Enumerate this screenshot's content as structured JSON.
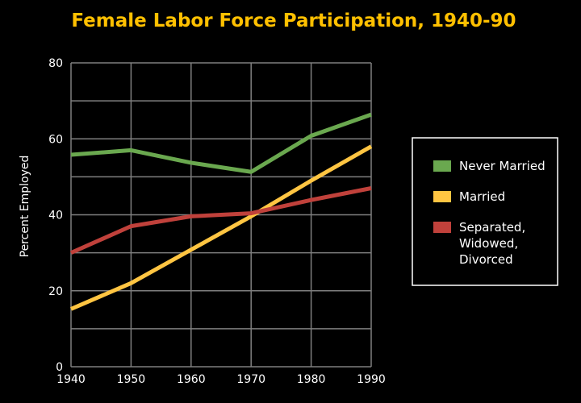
{
  "chart_data": {
    "type": "line",
    "title": "Female Labor Force Participation, 1940-90",
    "xlabel": "",
    "ylabel": "Percent Employed",
    "x": [
      1940,
      1950,
      1960,
      1970,
      1980,
      1990
    ],
    "xlim": [
      1940,
      1990
    ],
    "ylim": [
      0,
      80
    ],
    "x_ticks": [
      "1940",
      "1950",
      "1960",
      "1970",
      "1980",
      "1990"
    ],
    "y_ticks": [
      "0",
      "20",
      "40",
      "60",
      "80"
    ],
    "grid": true,
    "legend_position": "right",
    "series": [
      {
        "name": "Never Married",
        "color": "#6aa84f",
        "values": [
          55.8,
          57.0,
          53.7,
          51.3,
          60.8,
          66.4
        ]
      },
      {
        "name": "Married",
        "color": "#ffc542",
        "values": [
          15.2,
          22.0,
          30.8,
          39.6,
          49.0,
          58.0
        ]
      },
      {
        "name": "Separated, Widowed, Divorced",
        "legend_lines": [
          "Separated,",
          "Widowed,",
          "Divorced"
        ],
        "color": "#c0413b",
        "values": [
          30.0,
          37.0,
          39.6,
          40.4,
          43.9,
          47.0
        ]
      }
    ]
  },
  "colors": {
    "background": "#000000",
    "title": "#ffc000",
    "axis_text": "#ffffff",
    "grid": "#7f7f7f"
  }
}
